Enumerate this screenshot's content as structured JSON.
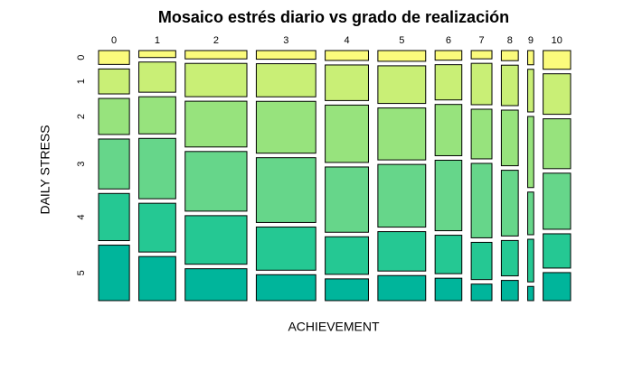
{
  "chart_data": {
    "type": "mosaic",
    "title": "Mosaico estrés diario vs grado de realización",
    "xlabel": "ACHIEVEMENT",
    "ylabel": "DAILY STRESS",
    "categories": [
      "0",
      "1",
      "2",
      "3",
      "4",
      "5",
      "6",
      "7",
      "8",
      "9",
      "10"
    ],
    "rows": [
      "0",
      "1",
      "2",
      "3",
      "4",
      "5"
    ],
    "colors": [
      "#fbfb7c",
      "#c9ef76",
      "#97e37d",
      "#66d68a",
      "#25c893",
      "#00b59b"
    ],
    "counts": [
      [
        5,
        9,
        13,
        18,
        17,
        20
      ],
      [
        3,
        13,
        16,
        26,
        21,
        19
      ],
      [
        6,
        24,
        33,
        43,
        35,
        23
      ],
      [
        6,
        23,
        36,
        45,
        30,
        18
      ],
      [
        5,
        18,
        29,
        33,
        19,
        11
      ],
      [
        6,
        21,
        29,
        35,
        22,
        14
      ],
      [
        3,
        11,
        16,
        22,
        12,
        7
      ],
      [
        2,
        10,
        12,
        18,
        9,
        4
      ],
      [
        2,
        8,
        11,
        13,
        7,
        4
      ],
      [
        1,
        3,
        5,
        3,
        3,
        1
      ],
      [
        6,
        13,
        16,
        18,
        11,
        9
      ]
    ]
  }
}
